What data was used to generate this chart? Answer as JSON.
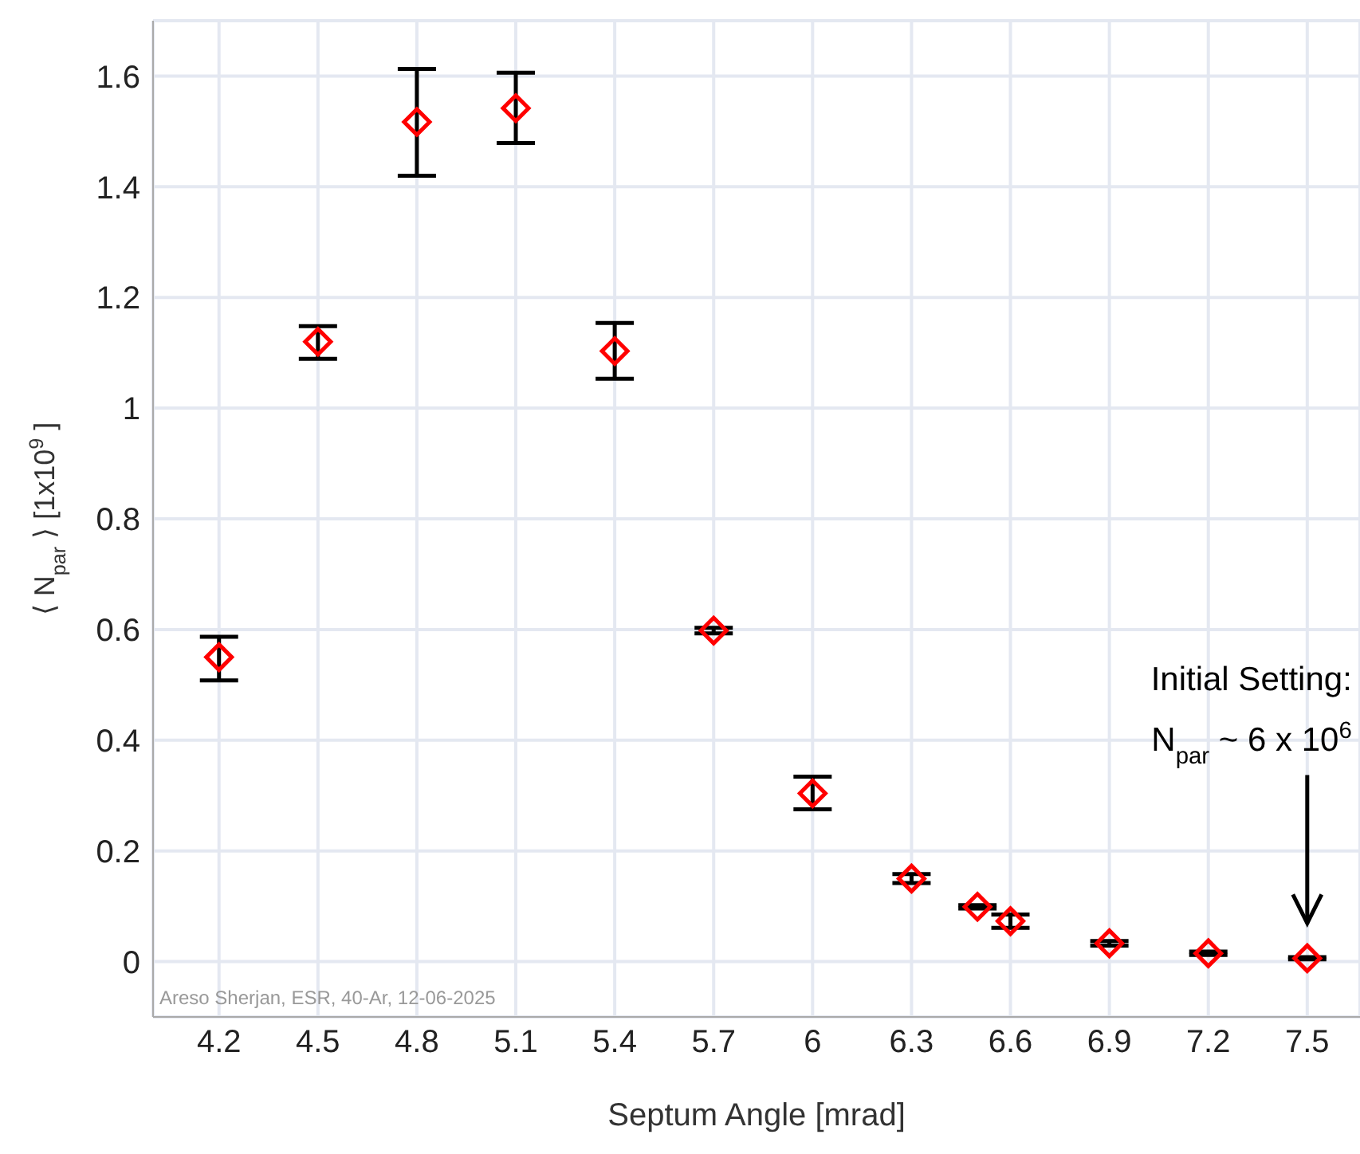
{
  "chart_data": {
    "type": "scatter",
    "xlabel": "Septum Angle [mrad]",
    "ylabel": "⟨ N$_{par}$ ⟩ [1x10$^{9}$]",
    "x": [
      4.2,
      4.5,
      4.8,
      5.1,
      5.4,
      5.7,
      6,
      6.3,
      6.5,
      6.6,
      6.9,
      7.2,
      7.5
    ],
    "series": [
      {
        "color": "#ff0000",
        "values": [
          0.55,
          1.12,
          1.517,
          1.542,
          1.103,
          0.598,
          0.304,
          0.15,
          0.099,
          0.073,
          0.033,
          0.015,
          0.006
        ],
        "errors": [
          [
            0.508,
            0.587
          ],
          [
            1.089,
            1.148
          ],
          [
            1.42,
            1.613
          ],
          [
            1.479,
            1.606
          ],
          [
            1.053,
            1.154
          ],
          [
            0.593,
            0.603
          ],
          [
            0.275,
            0.334
          ],
          [
            0.142,
            0.158
          ],
          [
            0.096,
            0.102
          ],
          [
            0.061,
            0.085
          ],
          [
            0.029,
            0.037
          ],
          [
            0.012,
            0.018
          ],
          [
            0.004,
            0.008
          ]
        ]
      }
    ],
    "xlim": [
      4.0,
      7.66
    ],
    "xticks": [
      4.2,
      4.5,
      4.8,
      5.1,
      5.4,
      5.7,
      6,
      6.3,
      6.6,
      6.9,
      7.2,
      7.5
    ],
    "ylim": [
      -0.1,
      1.7
    ],
    "yticks": [
      0,
      0.2,
      0.4,
      0.6,
      0.8,
      1,
      1.2,
      1.4,
      1.6
    ],
    "grid": true,
    "marker": "diamond",
    "legend": false,
    "annotations": [
      "Initial Setting:",
      "N$_{par}$ ~ 6 x 10$^{6}$",
      "Areso Sherjan, ESR, 40-Ar, 12-06-2025"
    ]
  }
}
